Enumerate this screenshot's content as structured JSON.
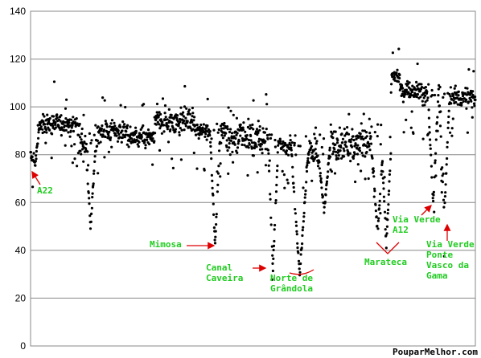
{
  "chart_data": {
    "type": "scatter",
    "title": "",
    "xlabel": "",
    "ylabel": "",
    "ylim": [
      0,
      140
    ],
    "y_ticks": [
      0,
      20,
      40,
      60,
      80,
      100,
      120,
      140
    ],
    "x_axis_labels": false,
    "grid": "horizontal",
    "legend": "none",
    "marker_color": "#000000",
    "annotation_color": "#22cc22",
    "arrow_color": "#dd0000",
    "trace_count": 1500,
    "segments": [
      {
        "from": 0.0,
        "to": 0.01,
        "base": 80,
        "noise": 4
      },
      {
        "from": 0.01,
        "to": 0.11,
        "base": 93,
        "noise": 4
      },
      {
        "from": 0.11,
        "to": 0.15,
        "base": 85,
        "noise": 7
      },
      {
        "from": 0.15,
        "to": 0.22,
        "base": 90,
        "noise": 4
      },
      {
        "from": 0.22,
        "to": 0.28,
        "base": 87,
        "noise": 4
      },
      {
        "from": 0.28,
        "to": 0.37,
        "base": 94,
        "noise": 5
      },
      {
        "from": 0.37,
        "to": 0.44,
        "base": 90,
        "noise": 4
      },
      {
        "from": 0.44,
        "to": 0.55,
        "base": 87,
        "noise": 7
      },
      {
        "from": 0.55,
        "to": 0.59,
        "base": 84,
        "noise": 4
      },
      {
        "from": 0.59,
        "to": 0.66,
        "base": 82,
        "noise": 9
      },
      {
        "from": 0.66,
        "to": 0.77,
        "base": 85,
        "noise": 7
      },
      {
        "from": 0.77,
        "to": 0.81,
        "base": 88,
        "noise": 5
      },
      {
        "from": 0.81,
        "to": 0.83,
        "base": 113,
        "noise": 3
      },
      {
        "from": 0.83,
        "to": 0.88,
        "base": 107,
        "noise": 3
      },
      {
        "from": 0.88,
        "to": 0.93,
        "base": 105,
        "noise": 6
      },
      {
        "from": 0.93,
        "to": 1.0,
        "base": 104,
        "noise": 4
      }
    ],
    "dips": [
      {
        "at": 0.01,
        "min": 74,
        "width": 0.012
      },
      {
        "at": 0.135,
        "min": 48,
        "width": 0.012
      },
      {
        "at": 0.415,
        "min": 41,
        "width": 0.012
      },
      {
        "at": 0.545,
        "min": 31,
        "width": 0.012
      },
      {
        "at": 0.605,
        "min": 28,
        "width": 0.02
      },
      {
        "at": 0.66,
        "min": 55,
        "width": 0.015
      },
      {
        "at": 0.78,
        "min": 45,
        "width": 0.015
      },
      {
        "at": 0.8,
        "min": 40,
        "width": 0.012
      },
      {
        "at": 0.905,
        "min": 58,
        "width": 0.012
      },
      {
        "at": 0.93,
        "min": 52,
        "width": 0.012
      }
    ],
    "annotations": [
      {
        "text": "A22",
        "lines": [
          "A22"
        ],
        "y": 64,
        "x": 0.025
      },
      {
        "text": "Mimosa",
        "lines": [
          "Mimosa"
        ],
        "y": 42,
        "x": 0.3
      },
      {
        "text": "Canal Caveira",
        "lines": [
          "Canal",
          "Caveira"
        ],
        "y": 32,
        "x": 0.44
      },
      {
        "text": "Norte de Grândola",
        "lines": [
          "Norte de",
          "Grândola"
        ],
        "y": 28,
        "x": 0.59
      },
      {
        "text": "Marateca",
        "lines": [
          "Marateca"
        ],
        "y": 34,
        "x": 0.77
      },
      {
        "text": "Via Verde A12",
        "lines": [
          "Via Verde",
          "A12"
        ],
        "y": 53,
        "x": 0.86
      },
      {
        "text": "Via Verde Ponte Vasco da Gama",
        "lines": [
          "Via Verde",
          "Ponte",
          "Vasco da",
          "Gama"
        ],
        "y": 43,
        "x": 0.955
      }
    ]
  },
  "watermark": "PouparMelhor.com"
}
